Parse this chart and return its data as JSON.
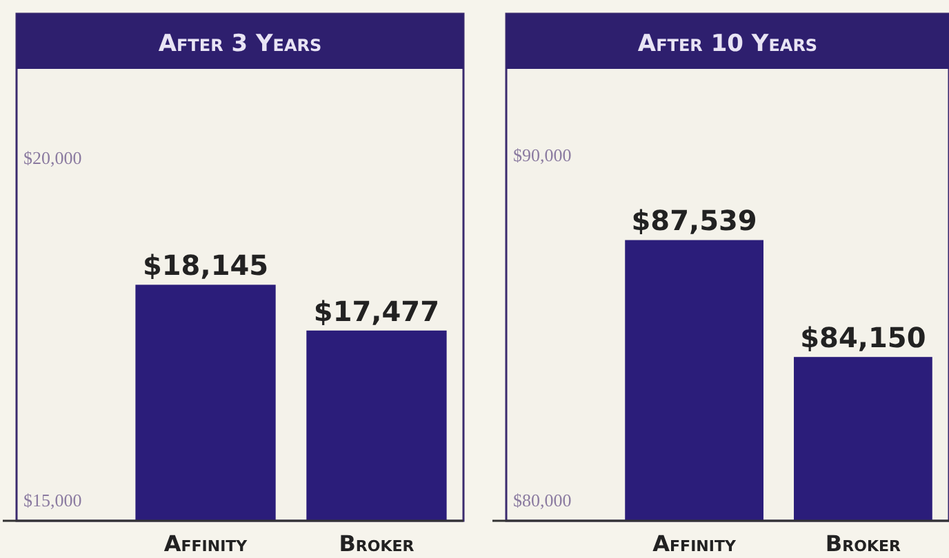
{
  "chart_data": [
    {
      "type": "bar",
      "title": "After 3 Years",
      "categories": [
        "Affinity",
        "Broker"
      ],
      "values": [
        18145,
        17477
      ],
      "color": "#2b1d7a",
      "ylim": [
        14700,
        22100
      ],
      "yticks": [
        {
          "value": 15000,
          "label": "$15,000"
        },
        {
          "value": 20000,
          "label": "$20,000"
        }
      ],
      "value_labels": [
        "$18,145",
        "$17,477"
      ],
      "grid": false
    },
    {
      "type": "bar",
      "title": "After 10 Years",
      "categories": [
        "Affinity",
        "Broker"
      ],
      "values": [
        87539,
        84150
      ],
      "color": "#2b1d7a",
      "ylim": [
        79400,
        94100
      ],
      "yticks": [
        {
          "value": 80000,
          "label": "$80,000"
        },
        {
          "value": 90000,
          "label": "$90,000"
        }
      ],
      "value_labels": [
        "$87,539",
        "$84,150"
      ],
      "grid": false
    }
  ]
}
